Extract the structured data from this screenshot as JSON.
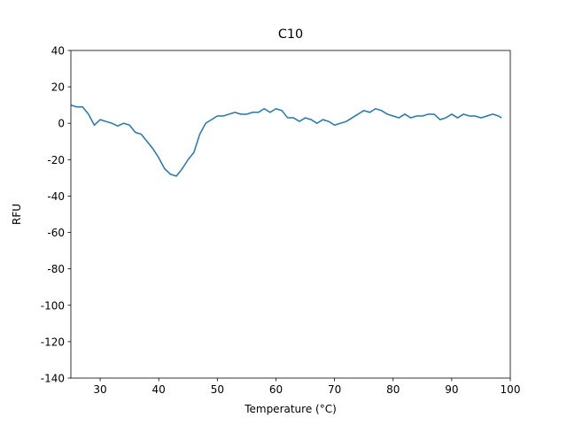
{
  "chart_data": {
    "type": "line",
    "title": "C10",
    "xlabel": "Temperature (°C)",
    "ylabel": "RFU",
    "color": "#1f77b4",
    "x": [
      25,
      26,
      27,
      28,
      29,
      30,
      31,
      32,
      33,
      34,
      35,
      36,
      37,
      38,
      39,
      40,
      41,
      42,
      43,
      44,
      45,
      46,
      47,
      48,
      49,
      50,
      51,
      52,
      53,
      54,
      55,
      56,
      57,
      58,
      59,
      60,
      61,
      62,
      63,
      64,
      65,
      66,
      67,
      68,
      69,
      70,
      71,
      72,
      73,
      74,
      75,
      76,
      77,
      78,
      79,
      80,
      81,
      82,
      83,
      84,
      85,
      86,
      87,
      88,
      89,
      90,
      91,
      92,
      93,
      94,
      95,
      96,
      97,
      98,
      98.5
    ],
    "values": [
      10,
      9,
      9,
      5,
      -1,
      2,
      1,
      0,
      -1.5,
      0,
      -1,
      -5,
      -6,
      -10,
      -14,
      -19,
      -25,
      -28,
      -29,
      -25,
      -20,
      -16,
      -6,
      0,
      2,
      4,
      4,
      5,
      6,
      5,
      5,
      6,
      6,
      8,
      6,
      8,
      7,
      3,
      3,
      1,
      3,
      2,
      0,
      2,
      1,
      -1,
      0,
      1,
      3,
      5,
      7,
      6,
      8,
      7,
      5,
      4,
      3,
      5,
      3,
      4,
      4,
      5,
      5,
      2,
      3,
      5,
      3,
      5,
      4,
      4,
      3,
      4,
      5,
      4,
      3
    ],
    "xlim": [
      25,
      100
    ],
    "ylim": [
      -140,
      40
    ],
    "xticks": [
      30,
      40,
      50,
      60,
      70,
      80,
      90,
      100
    ],
    "yticks": [
      -140,
      -120,
      -100,
      -80,
      -60,
      -40,
      -20,
      0,
      20,
      40
    ],
    "grid": false
  }
}
